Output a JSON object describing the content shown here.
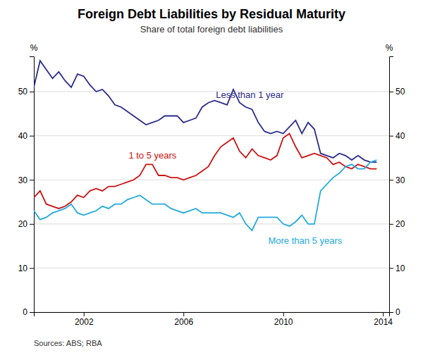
{
  "chart_data": {
    "type": "line",
    "title": "Foreign Debt Liabilities by Residual Maturity",
    "subtitle": "Share of total foreign debt liabilities",
    "ylabel": "%",
    "y2label": "%",
    "source": "Sources: ABS; RBA",
    "x": [
      2000.0,
      2000.25,
      2000.5,
      2000.75,
      2001.0,
      2001.25,
      2001.5,
      2001.75,
      2002.0,
      2002.25,
      2002.5,
      2002.75,
      2003.0,
      2003.25,
      2003.5,
      2003.75,
      2004.0,
      2004.25,
      2004.5,
      2004.75,
      2005.0,
      2005.25,
      2005.5,
      2005.75,
      2006.0,
      2006.25,
      2006.5,
      2006.75,
      2007.0,
      2007.25,
      2007.5,
      2007.75,
      2008.0,
      2008.25,
      2008.5,
      2008.75,
      2009.0,
      2009.25,
      2009.5,
      2009.75,
      2010.0,
      2010.25,
      2010.5,
      2010.75,
      2011.0,
      2011.25,
      2011.5,
      2011.75,
      2012.0,
      2012.25,
      2012.5,
      2012.75,
      2013.0,
      2013.25,
      2013.5,
      2013.75
    ],
    "series": [
      {
        "color": "#2B2B8C",
        "values": [
          51.0,
          57.0,
          55.0,
          53.0,
          54.5,
          52.5,
          51.0,
          54.0,
          53.5,
          51.5,
          50.0,
          50.5,
          49.0,
          47.0,
          46.5,
          45.5,
          44.5,
          43.5,
          42.5,
          43.0,
          43.5,
          44.5,
          44.5,
          44.5,
          43.0,
          43.5,
          44.0,
          46.5,
          47.5,
          48.0,
          47.5,
          47.0,
          50.5,
          47.5,
          46.5,
          46.0,
          43.0,
          41.0,
          40.5,
          41.0,
          40.5,
          42.0,
          43.5,
          40.5,
          43.0,
          41.5,
          36.0,
          35.5,
          35.0,
          36.0,
          35.5,
          34.5,
          35.5,
          34.5,
          34.0,
          34.0
        ]
      },
      {
        "color": "#CC1111",
        "values": [
          26.0,
          27.5,
          24.5,
          24.0,
          23.5,
          24.0,
          25.0,
          26.5,
          26.0,
          27.5,
          28.0,
          27.5,
          28.5,
          28.5,
          29.0,
          29.5,
          30.0,
          31.0,
          33.5,
          33.5,
          31.0,
          31.0,
          30.5,
          30.5,
          30.0,
          30.5,
          31.0,
          32.0,
          33.0,
          35.5,
          37.5,
          38.5,
          39.5,
          36.5,
          35.0,
          37.0,
          35.5,
          35.0,
          34.5,
          35.5,
          39.5,
          40.5,
          37.5,
          35.0,
          35.5,
          36.0,
          35.5,
          35.0,
          33.5,
          34.0,
          33.0,
          32.5,
          33.5,
          33.0,
          32.5,
          32.5
        ]
      },
      {
        "color": "#22AADD",
        "values": [
          23.0,
          21.0,
          21.5,
          22.5,
          23.0,
          23.5,
          24.5,
          22.5,
          22.0,
          22.5,
          23.0,
          24.0,
          23.5,
          24.5,
          24.5,
          25.5,
          26.0,
          26.5,
          25.5,
          24.5,
          24.5,
          24.5,
          23.5,
          23.0,
          22.5,
          23.0,
          23.5,
          22.5,
          22.5,
          22.5,
          22.5,
          22.0,
          21.5,
          22.5,
          20.0,
          18.5,
          21.5,
          21.5,
          21.5,
          21.5,
          20.0,
          19.5,
          20.5,
          22.0,
          20.0,
          20.0,
          27.5,
          29.0,
          30.5,
          31.5,
          33.0,
          33.5,
          32.5,
          32.5,
          34.0,
          34.5
        ]
      }
    ],
    "annotations": [
      {
        "text": "Less than 1 year",
        "x": 2007.3,
        "y": 48.5,
        "color": "#2B2B8C"
      },
      {
        "text": "1 to 5 years",
        "x": 2003.8,
        "y": 34.8,
        "color": "#CC1111"
      },
      {
        "text": "More than 5 years",
        "x": 2009.4,
        "y": 15.5,
        "color": "#22AADD"
      }
    ],
    "xlim": [
      2000.0,
      2014.25
    ],
    "xticks": [
      2002,
      2006,
      2010,
      2014
    ],
    "ylim": [
      0,
      58
    ],
    "yticks": [
      0,
      10,
      20,
      30,
      40,
      50
    ],
    "y2lim": [
      0,
      58
    ],
    "y2ticks": [
      0,
      10,
      20,
      30,
      40,
      50
    ],
    "grid": true
  }
}
